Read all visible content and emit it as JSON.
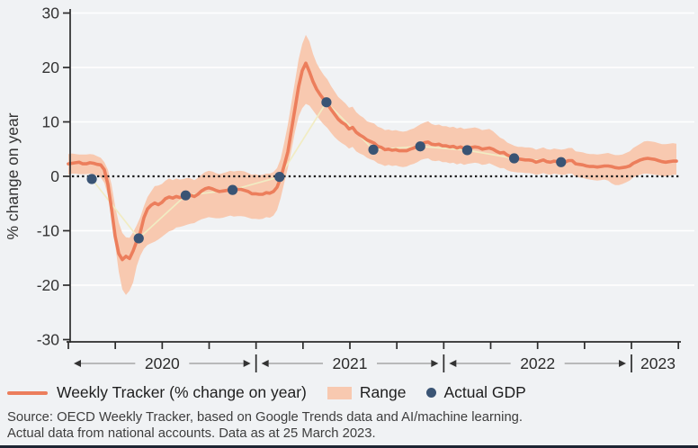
{
  "colors": {
    "background": "#f0f2f4",
    "band": "#f8c9b0",
    "tracker_line": "#ec7e5c",
    "gdp_dot": "#3a5474",
    "gdp_connector": "#f1ecc3",
    "gridline": "#ffffff",
    "axis": "#2b2b2b",
    "zero_line": "#1a1a1a",
    "arrow_shaft": "#979797",
    "arrow_head": "#333333",
    "tick_text": "#333333",
    "bottom_border": "#1d2433"
  },
  "y_axis": {
    "title": "% change on year",
    "tick_labels": [
      "30",
      "20",
      "10",
      "0",
      "-10",
      "-20",
      "-30"
    ],
    "tick_values": [
      30,
      20,
      10,
      0,
      -10,
      -20,
      -30
    ]
  },
  "x_axis": {
    "year_labels": [
      "2020",
      "2021",
      "2022",
      "2023"
    ]
  },
  "legend": {
    "tracker_label": "Weekly Tracker (% change on year)",
    "range_label": "Range",
    "gdp_label": "Actual GDP"
  },
  "source": {
    "line1": "Source: OECD Weekly Tracker, based on Google Trends data and AI/machine learning.",
    "line2": "Actual data from national accounts. Data as at 25 March 2023."
  },
  "chart_data": {
    "type": "line",
    "ylabel": "% change on year",
    "ylim": [
      -30,
      30
    ],
    "xlim_years": [
      2020.0,
      2023.25
    ],
    "grid": "horizontal gridlines every 10, white; dotted line at 0",
    "legend_position": "bottom-left",
    "x_start": "2020 week 1",
    "x_step": "1 week",
    "tracker_points_format": "[tracker_value, range_lower, range_upper] sampled weekly from Jan 2020 to mid-March 2023",
    "series": [
      {
        "name": "Weekly Tracker (% change on year)",
        "type": "line-with-band",
        "points": [
          [
            2.3,
            0.3,
            4.1
          ],
          [
            2.4,
            0.5,
            4.2
          ],
          [
            2.5,
            0.5,
            4.1
          ],
          [
            2.6,
            0.4,
            4.0
          ],
          [
            2.3,
            0.4,
            4.0
          ],
          [
            2.3,
            0.4,
            4.0
          ],
          [
            2.5,
            0.5,
            4.1
          ],
          [
            2.4,
            0.4,
            4.0
          ],
          [
            2.2,
            0.1,
            3.7
          ],
          [
            2.1,
            -0.2,
            3.4
          ],
          [
            1.2,
            -1.2,
            2.6
          ],
          [
            -1.5,
            -3.5,
            1.2
          ],
          [
            -6.0,
            -7.5,
            -1.5
          ],
          [
            -11.0,
            -12.5,
            -5.5
          ],
          [
            -14.2,
            -17.5,
            -8.5
          ],
          [
            -15.3,
            -20.8,
            -10.4
          ],
          [
            -14.7,
            -21.8,
            -11.2
          ],
          [
            -15.1,
            -21.0,
            -11.3
          ],
          [
            -13.7,
            -19.5,
            -10.3
          ],
          [
            -11.9,
            -16.5,
            -9.0
          ],
          [
            -10.3,
            -14.6,
            -7.5
          ],
          [
            -7.6,
            -13.3,
            -5.5
          ],
          [
            -6.0,
            -12.6,
            -3.8
          ],
          [
            -5.3,
            -12.3,
            -2.8
          ],
          [
            -4.9,
            -12.0,
            -1.8
          ],
          [
            -5.2,
            -11.6,
            -1.7
          ],
          [
            -4.8,
            -11.1,
            -1.4
          ],
          [
            -4.1,
            -10.6,
            -0.8
          ],
          [
            -3.8,
            -10.1,
            -0.4
          ],
          [
            -4.0,
            -9.9,
            -0.7
          ],
          [
            -3.7,
            -9.4,
            -0.4
          ],
          [
            -3.9,
            -9.3,
            -0.6
          ],
          [
            -3.8,
            -9.1,
            -0.5
          ],
          [
            -3.5,
            -8.9,
            -0.3
          ],
          [
            -3.5,
            -8.7,
            -0.4
          ],
          [
            -3.7,
            -8.6,
            -0.7
          ],
          [
            -3.3,
            -8.2,
            -0.3
          ],
          [
            -2.7,
            -7.9,
            0.3
          ],
          [
            -2.3,
            -7.7,
            0.8
          ],
          [
            -2.1,
            -7.5,
            1.0
          ],
          [
            -2.3,
            -7.6,
            0.9
          ],
          [
            -2.6,
            -7.7,
            0.6
          ],
          [
            -2.8,
            -7.7,
            0.4
          ],
          [
            -2.7,
            -7.6,
            0.6
          ],
          [
            -2.6,
            -7.4,
            0.8
          ],
          [
            -2.4,
            -7.2,
            1.0
          ],
          [
            -2.5,
            -7.4,
            0.9
          ],
          [
            -2.4,
            -7.3,
            1.0
          ],
          [
            -2.4,
            -7.3,
            1.0
          ],
          [
            -2.6,
            -7.4,
            0.9
          ],
          [
            -2.8,
            -7.6,
            0.6
          ],
          [
            -3.2,
            -7.8,
            0.3
          ],
          [
            -3.2,
            -7.8,
            0.4
          ],
          [
            -3.3,
            -7.9,
            0.2
          ],
          [
            -3.3,
            -7.8,
            0.3
          ],
          [
            -3.0,
            -7.5,
            0.5
          ],
          [
            -3.1,
            -7.6,
            0.5
          ],
          [
            -2.8,
            -7.2,
            0.8
          ],
          [
            -2.0,
            -6.2,
            1.5
          ],
          [
            -0.3,
            -4.0,
            3.2
          ],
          [
            2.0,
            -1.2,
            6.2
          ],
          [
            4.5,
            1.5,
            9.5
          ],
          [
            8.5,
            4.8,
            13.5
          ],
          [
            12.5,
            8.2,
            17.5
          ],
          [
            16.5,
            11.0,
            21.5
          ],
          [
            19.4,
            12.5,
            24.3
          ],
          [
            20.8,
            13.3,
            26.0
          ],
          [
            19.2,
            13.0,
            24.8
          ],
          [
            17.4,
            12.1,
            22.5
          ],
          [
            16.0,
            11.2,
            20.8
          ],
          [
            15.0,
            10.3,
            19.6
          ],
          [
            14.1,
            9.5,
            18.6
          ],
          [
            13.3,
            8.9,
            17.8
          ],
          [
            12.3,
            8.0,
            16.6
          ],
          [
            11.4,
            7.2,
            15.6
          ],
          [
            10.5,
            6.6,
            14.6
          ],
          [
            9.9,
            6.1,
            14.0
          ],
          [
            9.5,
            5.7,
            13.4
          ],
          [
            8.7,
            5.1,
            12.6
          ],
          [
            9.0,
            5.4,
            12.8
          ],
          [
            8.1,
            4.6,
            11.8
          ],
          [
            7.6,
            4.2,
            11.2
          ],
          [
            7.2,
            3.9,
            10.8
          ],
          [
            6.7,
            3.4,
            10.1
          ],
          [
            6.4,
            3.1,
            9.9
          ],
          [
            6.1,
            2.9,
            9.7
          ],
          [
            5.5,
            2.4,
            9.1
          ],
          [
            5.3,
            2.2,
            8.9
          ],
          [
            4.9,
            1.9,
            8.5
          ],
          [
            5.0,
            2.1,
            8.6
          ],
          [
            4.8,
            1.9,
            8.4
          ],
          [
            4.9,
            2.0,
            8.5
          ],
          [
            4.7,
            1.8,
            8.3
          ],
          [
            4.7,
            1.7,
            8.2
          ],
          [
            4.7,
            1.8,
            8.3
          ],
          [
            5.0,
            2.1,
            8.6
          ],
          [
            5.2,
            2.3,
            8.8
          ],
          [
            5.5,
            2.6,
            9.2
          ],
          [
            5.9,
            3.0,
            9.6
          ],
          [
            6.2,
            3.2,
            9.9
          ],
          [
            6.3,
            3.3,
            10.1
          ],
          [
            5.9,
            2.9,
            9.6
          ],
          [
            5.8,
            2.8,
            9.4
          ],
          [
            5.9,
            2.9,
            9.5
          ],
          [
            5.6,
            2.6,
            9.2
          ],
          [
            5.6,
            2.6,
            9.2
          ],
          [
            5.4,
            2.4,
            9.0
          ],
          [
            5.5,
            2.5,
            9.1
          ],
          [
            5.2,
            2.2,
            8.8
          ],
          [
            5.4,
            2.4,
            9.0
          ],
          [
            5.1,
            2.1,
            8.7
          ],
          [
            5.2,
            2.3,
            8.8
          ],
          [
            5.3,
            2.4,
            8.9
          ],
          [
            5.4,
            2.5,
            9.0
          ],
          [
            5.3,
            2.4,
            8.8
          ],
          [
            5.0,
            2.1,
            8.5
          ],
          [
            5.1,
            2.2,
            8.6
          ],
          [
            5.2,
            2.4,
            8.7
          ],
          [
            5.0,
            2.1,
            8.3
          ],
          [
            4.6,
            1.8,
            7.7
          ],
          [
            4.3,
            1.5,
            7.1
          ],
          [
            4.4,
            1.5,
            6.8
          ],
          [
            3.9,
            1.1,
            6.2
          ],
          [
            3.6,
            0.9,
            5.9
          ],
          [
            3.3,
            0.8,
            5.6
          ],
          [
            3.2,
            0.7,
            5.4
          ],
          [
            3.1,
            0.7,
            5.4
          ],
          [
            3.0,
            0.6,
            5.3
          ],
          [
            3.0,
            0.6,
            5.3
          ],
          [
            2.9,
            0.5,
            5.2
          ],
          [
            2.6,
            0.3,
            4.9
          ],
          [
            2.8,
            0.4,
            5.1
          ],
          [
            3.0,
            0.6,
            5.3
          ],
          [
            2.7,
            0.4,
            5.0
          ],
          [
            2.6,
            0.3,
            4.9
          ],
          [
            2.8,
            0.5,
            5.1
          ],
          [
            2.7,
            0.4,
            5.0
          ],
          [
            2.6,
            0.3,
            4.9
          ],
          [
            2.6,
            0.3,
            5.0
          ],
          [
            2.9,
            0.5,
            5.2
          ],
          [
            2.9,
            0.5,
            5.2
          ],
          [
            2.3,
            -0.1,
            4.6
          ],
          [
            2.2,
            -0.2,
            4.5
          ],
          [
            2.1,
            -0.3,
            4.4
          ],
          [
            1.9,
            -0.5,
            4.2
          ],
          [
            1.8,
            -0.6,
            4.1
          ],
          [
            1.8,
            -0.7,
            4.1
          ],
          [
            1.7,
            -0.8,
            4.0
          ],
          [
            1.8,
            -0.7,
            4.1
          ],
          [
            1.9,
            -0.6,
            4.2
          ],
          [
            1.9,
            -0.8,
            4.3
          ],
          [
            1.8,
            -1.3,
            4.1
          ],
          [
            1.6,
            -1.6,
            3.9
          ],
          [
            1.5,
            -1.6,
            3.9
          ],
          [
            1.6,
            -1.4,
            4.0
          ],
          [
            1.7,
            -1.1,
            4.3
          ],
          [
            1.9,
            -0.8,
            4.6
          ],
          [
            2.4,
            -0.2,
            5.2
          ],
          [
            2.7,
            0.1,
            5.6
          ],
          [
            3.0,
            0.3,
            6.0
          ],
          [
            3.2,
            0.5,
            6.4
          ],
          [
            3.3,
            0.5,
            6.5
          ],
          [
            3.2,
            0.4,
            6.4
          ],
          [
            3.1,
            0.3,
            6.3
          ],
          [
            2.9,
            0.2,
            6.1
          ],
          [
            2.7,
            0.0,
            5.9
          ],
          [
            2.6,
            0.0,
            5.9
          ],
          [
            2.7,
            0.1,
            6.0
          ],
          [
            2.8,
            0.3,
            6.1
          ],
          [
            2.8,
            0.3,
            6.0
          ]
        ]
      },
      {
        "name": "Range",
        "type": "area-band",
        "description": "Shaded band between range_lower and range_upper of the Weekly Tracker points"
      },
      {
        "name": "Actual GDP",
        "type": "scatter",
        "quarters": [
          "2020 Q1",
          "2020 Q2",
          "2020 Q3",
          "2020 Q4",
          "2021 Q1",
          "2021 Q2",
          "2021 Q3",
          "2021 Q4",
          "2022 Q1",
          "2022 Q2",
          "2022 Q3"
        ],
        "values": [
          -0.5,
          -11.4,
          -3.5,
          -2.5,
          -0.1,
          13.6,
          4.9,
          5.5,
          4.8,
          3.3,
          2.6
        ]
      }
    ]
  }
}
